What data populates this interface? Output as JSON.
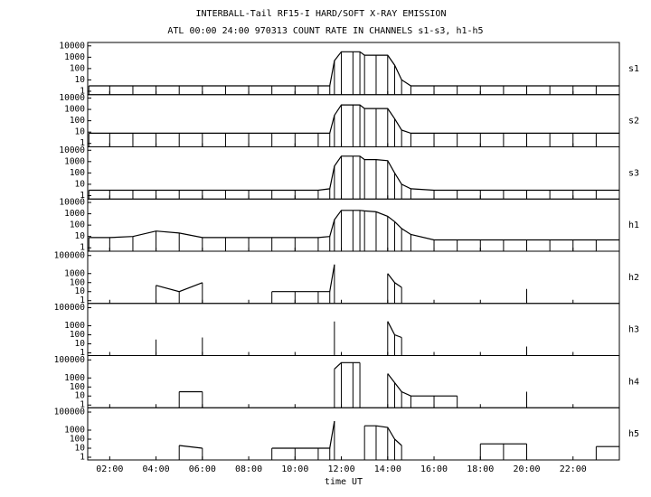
{
  "title": "INTERBALL-Tail RF15-I HARD/SOFT X-RAY EMISSION",
  "subtitle": "ATL 00:00 24:00 970313  COUNT RATE IN CHANNELS s1-s3, h1-h5",
  "x_label": "time UT",
  "x": [
    1.1,
    2,
    3,
    4,
    5,
    6,
    7,
    8,
    9,
    10,
    11,
    11.5,
    11.7,
    12,
    12.5,
    12.8,
    13,
    13.5,
    14,
    14.3,
    14.6,
    15,
    16,
    17,
    18,
    19,
    20,
    21,
    22,
    23,
    24
  ],
  "xlim": [
    1.05,
    24
  ],
  "xticks": [
    {
      "value": 2,
      "label": "02:00"
    },
    {
      "value": 4,
      "label": "04:00"
    },
    {
      "value": 6,
      "label": "06:00"
    },
    {
      "value": 8,
      "label": "08:00"
    },
    {
      "value": 10,
      "label": "10:00"
    },
    {
      "value": 12,
      "label": "12:00"
    },
    {
      "value": 14,
      "label": "14:00"
    },
    {
      "value": 16,
      "label": "16:00"
    },
    {
      "value": 18,
      "label": "18:00"
    },
    {
      "value": 20,
      "label": "20:00"
    },
    {
      "value": 22,
      "label": "22:00"
    }
  ],
  "chart_data": [
    {
      "type": "line",
      "label": "s1",
      "log_scale": true,
      "color": "#000000",
      "ylim": [
        0.5,
        20000
      ],
      "yticks": [
        1,
        10,
        100,
        1000,
        10000
      ],
      "values": [
        3,
        3,
        3,
        3,
        3,
        3,
        3,
        3,
        3,
        3,
        3,
        3,
        500,
        3000,
        3000,
        3000,
        1500,
        1500,
        1500,
        200,
        10,
        3,
        3,
        3,
        3,
        3,
        3,
        3,
        3,
        3,
        3
      ]
    },
    {
      "type": "line",
      "label": "s2",
      "log_scale": true,
      "color": "#000000",
      "ylim": [
        0.5,
        20000
      ],
      "yticks": [
        1,
        10,
        100,
        1000,
        10000
      ],
      "values": [
        8,
        8,
        8,
        8,
        8,
        8,
        8,
        8,
        8,
        8,
        8,
        8,
        300,
        2500,
        2500,
        2500,
        1200,
        1200,
        1200,
        150,
        15,
        8,
        8,
        8,
        8,
        8,
        8,
        8,
        8,
        8,
        8
      ]
    },
    {
      "type": "line",
      "label": "s3",
      "log_scale": true,
      "color": "#000000",
      "ylim": [
        0.5,
        20000
      ],
      "yticks": [
        1,
        10,
        100,
        1000,
        10000
      ],
      "values": [
        3,
        3,
        3,
        3,
        3,
        3,
        3,
        3,
        3,
        3,
        3,
        4,
        400,
        3000,
        3000,
        3000,
        1500,
        1500,
        1200,
        100,
        10,
        4,
        3,
        3,
        3,
        3,
        3,
        3,
        3,
        3,
        3
      ]
    },
    {
      "type": "line",
      "label": "h1",
      "log_scale": true,
      "color": "#000000",
      "ylim": [
        0.5,
        20000
      ],
      "yticks": [
        1,
        10,
        100,
        1000,
        10000
      ],
      "values": [
        8,
        8,
        10,
        30,
        20,
        8,
        8,
        8,
        8,
        8,
        8,
        10,
        300,
        2000,
        2000,
        2000,
        1800,
        1500,
        600,
        200,
        50,
        15,
        5,
        5,
        5,
        5,
        5,
        5,
        5,
        5,
        5
      ]
    },
    {
      "type": "line",
      "label": "h2",
      "log_scale": true,
      "color": "#000000",
      "ylim": [
        0.5,
        300000
      ],
      "yticks": [
        1,
        10,
        100,
        1000,
        100000
      ],
      "values": [
        null,
        null,
        null,
        50,
        10,
        100,
        null,
        null,
        10,
        10,
        10,
        10,
        10000,
        null,
        null,
        null,
        null,
        null,
        1000,
        100,
        30,
        null,
        null,
        null,
        null,
        null,
        20,
        null,
        null,
        null,
        null
      ]
    },
    {
      "type": "line",
      "label": "h3",
      "log_scale": true,
      "color": "#000000",
      "ylim": [
        0.5,
        300000
      ],
      "yticks": [
        1,
        10,
        100,
        1000,
        100000
      ],
      "values": [
        null,
        null,
        null,
        30,
        null,
        50,
        null,
        null,
        null,
        null,
        null,
        null,
        3000,
        null,
        null,
        null,
        null,
        null,
        3000,
        100,
        50,
        null,
        null,
        null,
        null,
        null,
        5,
        null,
        null,
        null,
        null
      ]
    },
    {
      "type": "line",
      "label": "h4",
      "log_scale": true,
      "color": "#000000",
      "ylim": [
        0.5,
        300000
      ],
      "yticks": [
        1,
        10,
        100,
        1000,
        100000
      ],
      "values": [
        null,
        null,
        null,
        null,
        30,
        30,
        null,
        null,
        null,
        null,
        null,
        null,
        10000,
        50000,
        50000,
        50000,
        null,
        null,
        3000,
        300,
        30,
        10,
        10,
        10,
        null,
        null,
        30,
        null,
        null,
        null,
        null
      ]
    },
    {
      "type": "line",
      "label": "h5",
      "log_scale": true,
      "color": "#000000",
      "ylim": [
        0.5,
        300000
      ],
      "yticks": [
        1,
        10,
        100,
        1000,
        100000
      ],
      "values": [
        null,
        null,
        null,
        null,
        20,
        10,
        null,
        null,
        10,
        10,
        10,
        10,
        10000,
        null,
        null,
        null,
        3000,
        3000,
        2000,
        100,
        20,
        null,
        null,
        null,
        30,
        30,
        30,
        null,
        null,
        15,
        15
      ]
    }
  ]
}
